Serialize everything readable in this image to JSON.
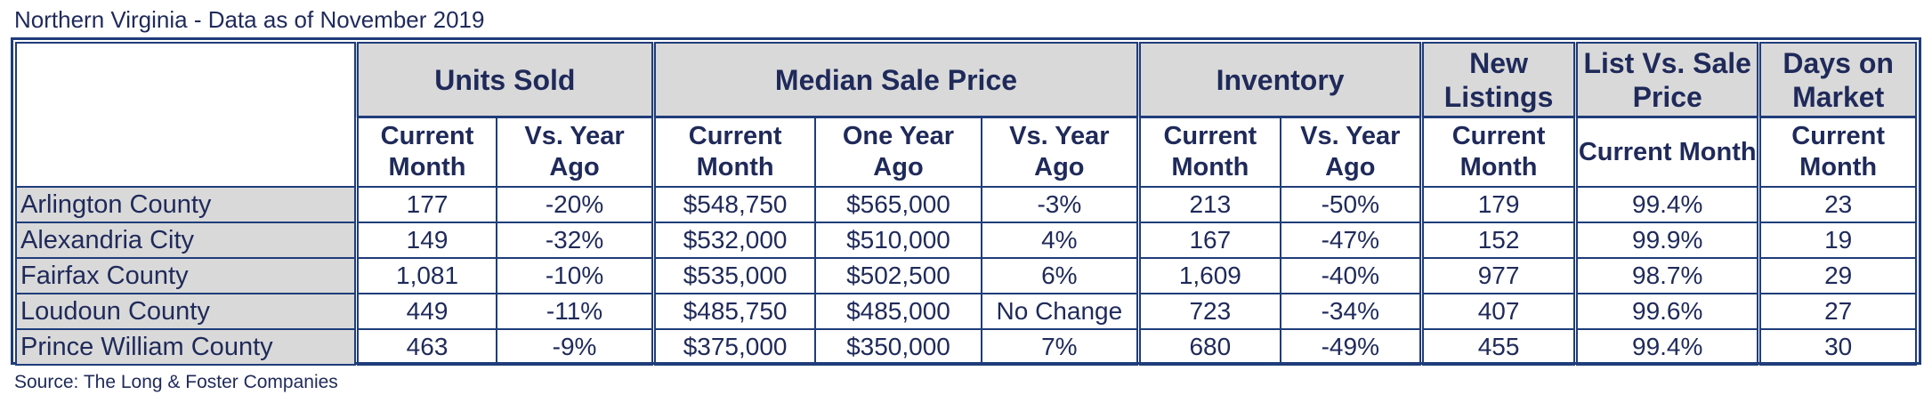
{
  "title": "Northern Virginia - Data as of November 2019",
  "source": "Source: The Long & Foster Companies",
  "groups": {
    "units_sold": "Units Sold",
    "median_sale_price": "Median Sale Price",
    "inventory": "Inventory",
    "new_listings": "New Listings",
    "list_vs_sale": "List Vs. Sale Price",
    "days_on_market": "Days on Market"
  },
  "subheaders": {
    "units_current": "Current Month",
    "units_vs": "Vs. Year Ago",
    "price_current": "Current Month",
    "price_one_year": "One Year Ago",
    "price_vs": "Vs. Year Ago",
    "inv_current": "Current Month",
    "inv_vs": "Vs. Year Ago",
    "new_current": "Current Month",
    "list_current": "Current Month",
    "days_current": "Current Month"
  },
  "rows": [
    {
      "name": "Arlington County",
      "units": "177",
      "units_vs": "-20%",
      "price": "$548,750",
      "price_prev": "$565,000",
      "price_vs": "-3%",
      "inv": "213",
      "inv_vs": "-50%",
      "new": "179",
      "list": "99.4%",
      "days": "23"
    },
    {
      "name": "Alexandria City",
      "units": "149",
      "units_vs": "-32%",
      "price": "$532,000",
      "price_prev": "$510,000",
      "price_vs": "4%",
      "inv": "167",
      "inv_vs": "-47%",
      "new": "152",
      "list": "99.9%",
      "days": "19"
    },
    {
      "name": "Fairfax County",
      "units": "1,081",
      "units_vs": "-10%",
      "price": "$535,000",
      "price_prev": "$502,500",
      "price_vs": "6%",
      "inv": "1,609",
      "inv_vs": "-40%",
      "new": "977",
      "list": "98.7%",
      "days": "29"
    },
    {
      "name": "Loudoun County",
      "units": "449",
      "units_vs": "-11%",
      "price": "$485,750",
      "price_prev": "$485,000",
      "price_vs": "No Change",
      "inv": "723",
      "inv_vs": "-34%",
      "new": "407",
      "list": "99.6%",
      "days": "27"
    },
    {
      "name": "Prince William County",
      "units": "463",
      "units_vs": "-9%",
      "price": "$375,000",
      "price_prev": "$350,000",
      "price_vs": "7%",
      "inv": "680",
      "inv_vs": "-49%",
      "new": "455",
      "list": "99.4%",
      "days": "30"
    }
  ]
}
